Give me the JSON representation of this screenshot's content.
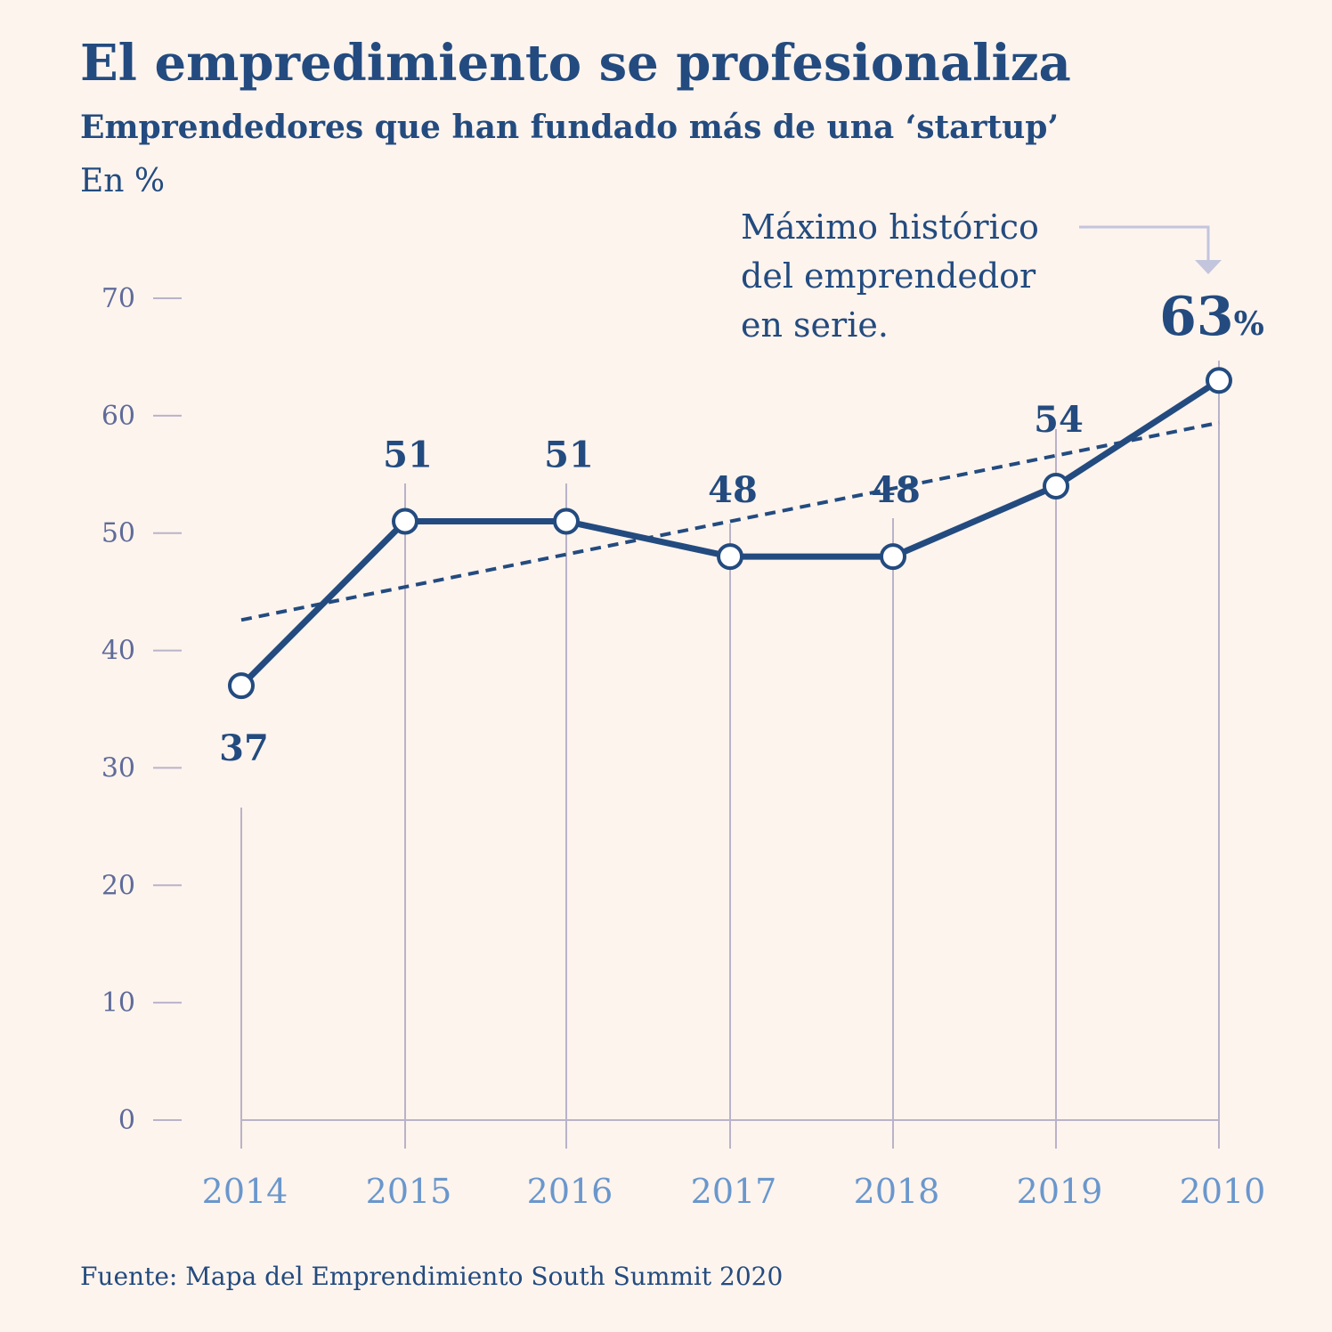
{
  "chart_data": {
    "type": "line",
    "title": "El empredimiento se profesionaliza",
    "subtitle": "Emprendedores que han fundado más de una ‘startup’",
    "ylabel": "En %",
    "categories": [
      "2014",
      "2015",
      "2016",
      "2017",
      "2018",
      "2019",
      "2010"
    ],
    "series": [
      {
        "values": [
          37,
          51,
          51,
          48,
          48,
          54,
          63
        ]
      }
    ],
    "trendline": {
      "style": "dashed",
      "start": 42.6,
      "end": 59.4
    },
    "data_labels": [
      "37",
      "51",
      "51",
      "48",
      "48",
      "54",
      "63"
    ],
    "highlight": {
      "index": 6,
      "value_text": "63",
      "unit_text": "%"
    },
    "annotation": [
      "Máximo histórico",
      "del emprendedor",
      "en serie."
    ],
    "yticks": [
      0,
      10,
      20,
      30,
      40,
      50,
      60,
      70
    ],
    "ylim": [
      0,
      70
    ],
    "grid": "vertical lines at each category",
    "legend": "none"
  },
  "source": "Fuente: Mapa del Emprendimiento South Summit 2020",
  "colors": {
    "background": "#fdf4ee",
    "line": "#234b7f",
    "grid": "#b9b3c9",
    "ytick": "#5f6b99",
    "xtick": "#6a97cc"
  }
}
